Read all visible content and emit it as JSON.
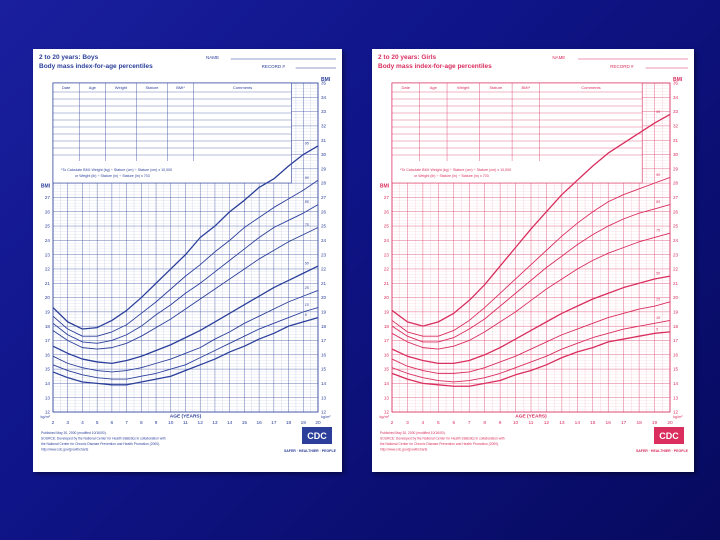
{
  "slide": {
    "background": "#0f1488"
  },
  "chart_data": [
    {
      "type": "line",
      "id": "boys",
      "color": "#2b3f9a",
      "title_line1": "2 to 20 years: Boys",
      "title_line2": "Body mass index-for-age percentiles",
      "name_label": "NAME",
      "record_label": "RECORD #",
      "table_headers": [
        "Date",
        "Age",
        "Weight",
        "Stature",
        "BMI*",
        "Comments"
      ],
      "formula_line1": "*To Calculate BMI: Weight (kg) ÷ Stature (cm) ÷ Stature (cm) x 10,000",
      "formula_line2": "or Weight (lb) ÷ Stature (in) ÷ Stature (in) x 703",
      "bmi_label": "BMI",
      "unit_label": "kg/m²",
      "xlabel": "AGE (YEARS)",
      "x_ticks": [
        2,
        3,
        4,
        5,
        6,
        7,
        8,
        9,
        10,
        11,
        12,
        13,
        14,
        15,
        16,
        17,
        18,
        19,
        20
      ],
      "xlim": [
        2,
        20
      ],
      "ylim": [
        12,
        35
      ],
      "y_ticks_left": [
        12,
        13,
        14,
        15,
        16,
        17,
        18,
        19,
        20,
        21,
        22,
        23,
        24,
        25,
        26,
        27
      ],
      "y_ticks_right": [
        12,
        13,
        14,
        15,
        16,
        17,
        18,
        19,
        20,
        21,
        22,
        23,
        24,
        25,
        26,
        27,
        28,
        29,
        30,
        31,
        32,
        33,
        34,
        35
      ],
      "footer_lines": [
        "Published May 30, 2000 (modified 10/16/00).",
        "SOURCE: Developed by the National Center for Health Statistics in collaboration with",
        "the National Center for Chronic Disease Prevention and Health Promotion (2000).",
        "http://www.cdc.gov/growthcharts"
      ],
      "logo_text": "CDC",
      "tagline": "SAFER · HEALTHIER · PEOPLE",
      "ages": [
        2,
        3,
        4,
        5,
        6,
        7,
        8,
        9,
        10,
        11,
        12,
        13,
        14,
        15,
        16,
        17,
        18,
        19,
        20
      ],
      "series": [
        {
          "name": "95",
          "values": [
            19.3,
            18.3,
            17.8,
            17.9,
            18.4,
            19.1,
            20.0,
            21.0,
            22.0,
            23.0,
            24.2,
            25.0,
            26.0,
            26.8,
            27.7,
            28.3,
            29.2,
            30.0,
            30.6
          ]
        },
        {
          "name": "90",
          "values": [
            18.7,
            17.8,
            17.3,
            17.3,
            17.6,
            18.1,
            18.9,
            19.7,
            20.6,
            21.5,
            22.3,
            23.2,
            24.0,
            24.9,
            25.6,
            26.3,
            26.9,
            27.5,
            28.2
          ]
        },
        {
          "name": "85",
          "values": [
            18.2,
            17.4,
            16.9,
            16.8,
            17.0,
            17.4,
            18.0,
            18.8,
            19.5,
            20.3,
            21.0,
            21.8,
            22.6,
            23.4,
            24.2,
            24.9,
            25.4,
            25.9,
            26.5
          ]
        },
        {
          "name": "75",
          "values": [
            17.7,
            17.0,
            16.5,
            16.4,
            16.5,
            16.8,
            17.3,
            17.9,
            18.5,
            19.2,
            19.9,
            20.6,
            21.3,
            22.0,
            22.7,
            23.3,
            23.9,
            24.4,
            24.9
          ]
        },
        {
          "name": "50",
          "values": [
            16.6,
            16.1,
            15.7,
            15.5,
            15.4,
            15.6,
            15.9,
            16.3,
            16.7,
            17.2,
            17.7,
            18.3,
            18.9,
            19.5,
            20.1,
            20.7,
            21.2,
            21.7,
            22.2
          ]
        },
        {
          "name": "25",
          "values": [
            15.9,
            15.4,
            15.1,
            14.9,
            14.8,
            14.9,
            15.1,
            15.4,
            15.7,
            16.1,
            16.5,
            17.1,
            17.6,
            18.2,
            18.7,
            19.2,
            19.7,
            20.1,
            20.5
          ]
        },
        {
          "name": "10",
          "values": [
            15.3,
            14.9,
            14.6,
            14.4,
            14.3,
            14.3,
            14.5,
            14.7,
            15.0,
            15.3,
            15.8,
            16.3,
            16.8,
            17.3,
            17.8,
            18.2,
            18.6,
            19.0,
            19.3
          ]
        },
        {
          "name": "5",
          "values": [
            14.8,
            14.4,
            14.1,
            14.0,
            13.9,
            13.9,
            14.1,
            14.3,
            14.5,
            14.9,
            15.3,
            15.7,
            16.2,
            16.6,
            17.1,
            17.5,
            18.0,
            18.3,
            18.6
          ]
        }
      ]
    },
    {
      "type": "line",
      "id": "girls",
      "color": "#d92e5e",
      "title_line1": "2 to 20 years: Girls",
      "title_line2": "Body mass index-for-age percentiles",
      "name_label": "NAME",
      "record_label": "RECORD #",
      "table_headers": [
        "Date",
        "Age",
        "Weight",
        "Stature",
        "BMI*",
        "Comments"
      ],
      "formula_line1": "*To Calculate BMI: Weight (kg) ÷ Stature (cm) ÷ Stature (cm) x 10,000",
      "formula_line2": "or Weight (lb) ÷ Stature (in) ÷ Stature (in) x 703",
      "bmi_label": "BMI",
      "unit_label": "kg/m²",
      "xlabel": "AGE (YEARS)",
      "x_ticks": [
        2,
        3,
        4,
        5,
        6,
        7,
        8,
        9,
        10,
        11,
        12,
        13,
        14,
        15,
        16,
        17,
        18,
        19,
        20
      ],
      "xlim": [
        2,
        20
      ],
      "ylim": [
        12,
        35
      ],
      "y_ticks_left": [
        12,
        13,
        14,
        15,
        16,
        17,
        18,
        19,
        20,
        21,
        22,
        23,
        24,
        25,
        26,
        27
      ],
      "y_ticks_right": [
        12,
        13,
        14,
        15,
        16,
        17,
        18,
        19,
        20,
        21,
        22,
        23,
        24,
        25,
        26,
        27,
        28,
        29,
        30,
        31,
        32,
        33,
        34,
        35
      ],
      "footer_lines": [
        "Published May 30, 2000 (modified 10/16/00).",
        "SOURCE: Developed by the National Center for Health Statistics in collaboration with",
        "the National Center for Chronic Disease Prevention and Health Promotion (2000).",
        "http://www.cdc.gov/growthcharts"
      ],
      "logo_text": "CDC",
      "tagline": "SAFER · HEALTHIER · PEOPLE",
      "ages": [
        2,
        3,
        4,
        5,
        6,
        7,
        8,
        9,
        10,
        11,
        12,
        13,
        14,
        15,
        16,
        17,
        18,
        19,
        20
      ],
      "series": [
        {
          "name": "95",
          "values": [
            19.1,
            18.3,
            18.0,
            18.3,
            18.9,
            19.8,
            20.9,
            22.2,
            23.5,
            24.8,
            26.0,
            27.2,
            28.2,
            29.2,
            30.1,
            30.8,
            31.5,
            32.2,
            32.8
          ]
        },
        {
          "name": "90",
          "values": [
            18.4,
            17.6,
            17.3,
            17.3,
            17.7,
            18.4,
            19.3,
            20.3,
            21.3,
            22.3,
            23.3,
            24.3,
            25.2,
            26.0,
            26.7,
            27.2,
            27.6,
            28.0,
            28.4
          ]
        },
        {
          "name": "85",
          "values": [
            18.0,
            17.3,
            16.9,
            16.9,
            17.2,
            17.8,
            18.5,
            19.4,
            20.3,
            21.2,
            22.1,
            22.9,
            23.7,
            24.4,
            25.0,
            25.5,
            25.9,
            26.2,
            26.5
          ]
        },
        {
          "name": "75",
          "values": [
            17.5,
            16.9,
            16.5,
            16.4,
            16.6,
            17.0,
            17.6,
            18.3,
            19.0,
            19.8,
            20.6,
            21.3,
            22.0,
            22.6,
            23.1,
            23.5,
            23.9,
            24.2,
            24.5
          ]
        },
        {
          "name": "50",
          "values": [
            16.4,
            15.9,
            15.6,
            15.4,
            15.4,
            15.6,
            16.0,
            16.5,
            17.1,
            17.7,
            18.3,
            18.9,
            19.4,
            19.9,
            20.3,
            20.7,
            21.0,
            21.3,
            21.5
          ]
        },
        {
          "name": "25",
          "values": [
            15.7,
            15.2,
            14.9,
            14.7,
            14.7,
            14.8,
            15.1,
            15.5,
            15.9,
            16.4,
            16.9,
            17.4,
            17.8,
            18.2,
            18.6,
            18.9,
            19.2,
            19.4,
            19.7
          ]
        },
        {
          "name": "10",
          "values": [
            15.1,
            14.7,
            14.4,
            14.2,
            14.1,
            14.2,
            14.4,
            14.7,
            15.1,
            15.5,
            15.9,
            16.4,
            16.8,
            17.2,
            17.5,
            17.8,
            18.0,
            18.2,
            18.4
          ]
        },
        {
          "name": "5",
          "values": [
            14.7,
            14.3,
            14.0,
            13.9,
            13.8,
            13.8,
            14.0,
            14.2,
            14.6,
            14.9,
            15.3,
            15.8,
            16.2,
            16.5,
            16.9,
            17.1,
            17.3,
            17.5,
            17.6
          ]
        }
      ]
    }
  ]
}
